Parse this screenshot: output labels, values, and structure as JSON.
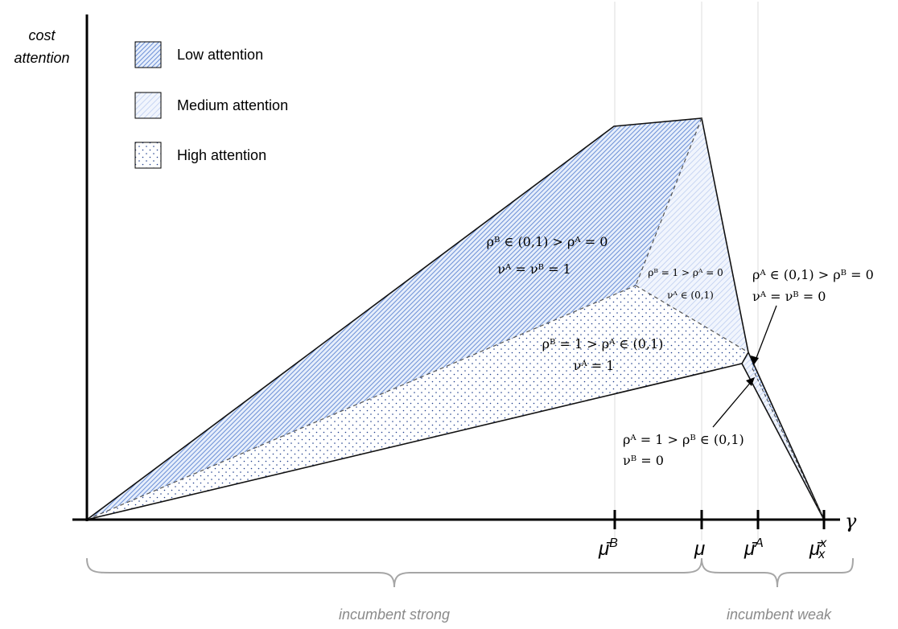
{
  "axes": {
    "y_label_line1": "cost",
    "y_label_line2": "attention",
    "x_label": "γ"
  },
  "legend": [
    {
      "label": "Low attention",
      "pattern": "dense-hatch"
    },
    {
      "label": "Medium attention",
      "pattern": "light-hatch"
    },
    {
      "label": "High attention",
      "pattern": "dots"
    }
  ],
  "ticks": [
    {
      "base": "μ̄",
      "sup": "B",
      "sub": ""
    },
    {
      "base": "μ",
      "sup": "",
      "sub": ""
    },
    {
      "base": "μ̄",
      "sup": "A",
      "sub": ""
    },
    {
      "base": "μ̄",
      "sup": "x",
      "sub": "x"
    }
  ],
  "regions": {
    "low": {
      "line1": "ρᴮ ∈ (0,1) > ρᴬ = 0",
      "line2": "νᴬ = νᴮ = 1"
    },
    "medium": {
      "line1": "ρᴮ = 1 > ρᴬ = 0",
      "line2": "νᴬ ∈ (0,1)"
    },
    "high": {
      "line1": "ρᴮ = 1 > ρᴬ ∈ (0,1)",
      "line2": "νᴬ = 1"
    }
  },
  "callouts": {
    "upper": {
      "line1": "ρᴬ ∈ (0,1) > ρᴮ = 0",
      "line2": "νᴬ = νᴮ = 0"
    },
    "lower": {
      "line1": "ρᴬ = 1 > ρᴮ ∈ (0,1)",
      "line2": "νᴮ = 0"
    }
  },
  "braces": {
    "left": "incumbent strong",
    "right": "incumbent weak"
  },
  "colors": {
    "hatch": "#6b8fd6",
    "light_hatch": "#a9bde8",
    "dots": "#1f3e8c",
    "axis": "#000000",
    "brace": "#a6a6a6"
  }
}
